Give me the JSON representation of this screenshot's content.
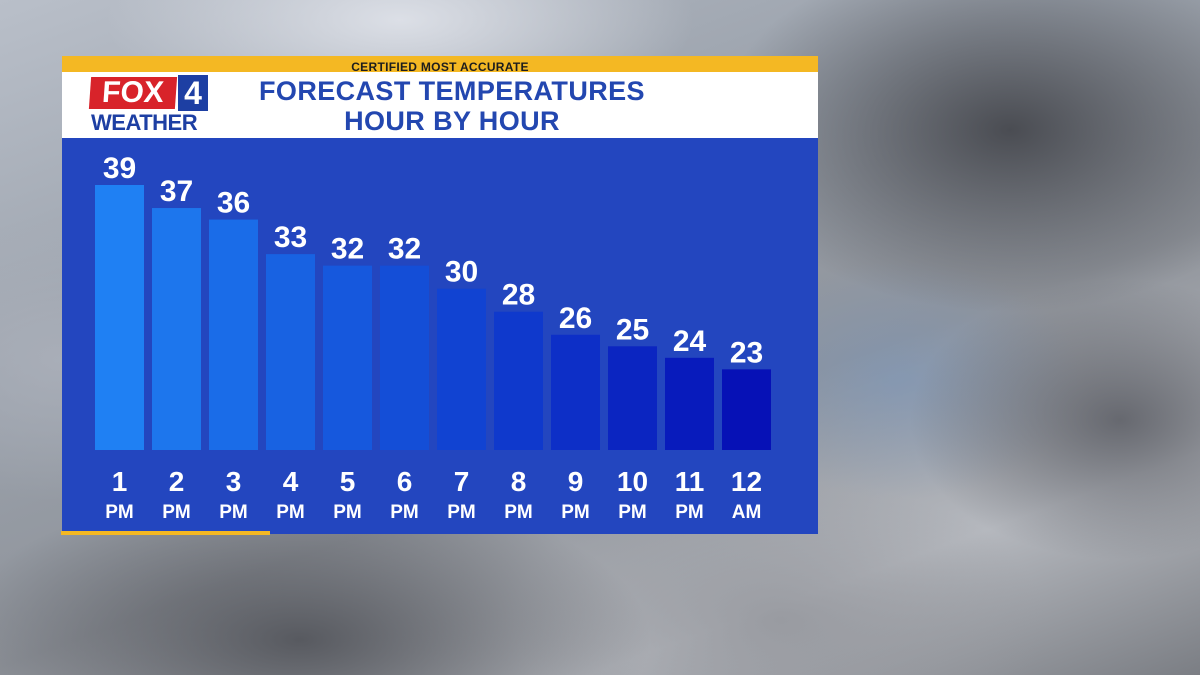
{
  "banner": {
    "text": "CERTIFIED MOST ACCURATE"
  },
  "logo": {
    "fox": "FOX",
    "number": "4",
    "weather": "WEATHER"
  },
  "header": {
    "title_line1": "FORECAST TEMPERATURES",
    "title_line2": "HOUR BY HOUR"
  },
  "colors": {
    "panel": "#2346bf",
    "banner": "#f4b823",
    "bar_start": "#1f80f3",
    "bar_end": "#0611b6"
  },
  "chart_data": {
    "type": "bar",
    "title": "FORECAST TEMPERATURES HOUR BY HOUR",
    "categories": [
      "1 PM",
      "2 PM",
      "3 PM",
      "4 PM",
      "5 PM",
      "6 PM",
      "7 PM",
      "8 PM",
      "9 PM",
      "10 PM",
      "11 PM",
      "12 AM"
    ],
    "hours": [
      "1",
      "2",
      "3",
      "4",
      "5",
      "6",
      "7",
      "8",
      "9",
      "10",
      "11",
      "12"
    ],
    "periods": [
      "PM",
      "PM",
      "PM",
      "PM",
      "PM",
      "PM",
      "PM",
      "PM",
      "PM",
      "PM",
      "PM",
      "AM"
    ],
    "values": [
      39,
      37,
      36,
      33,
      32,
      32,
      30,
      28,
      26,
      25,
      24,
      23
    ],
    "grid": false,
    "legend": "none"
  }
}
